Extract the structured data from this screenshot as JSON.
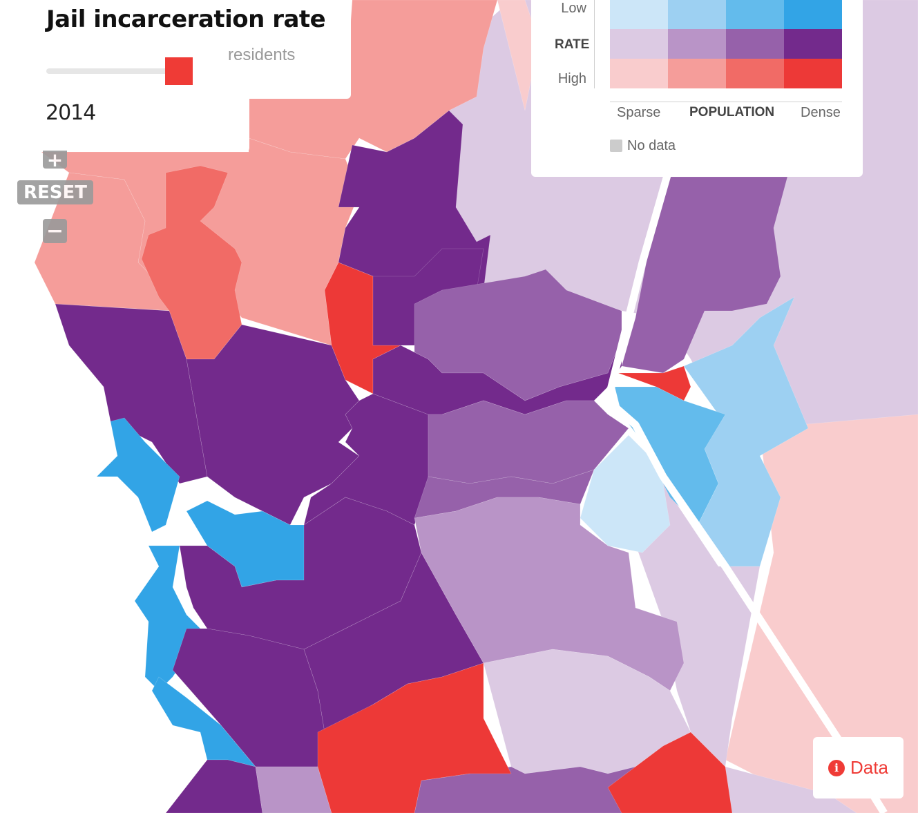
{
  "title": "Jail incarceration rate",
  "subtitle": "residents",
  "year_label": "2014",
  "zoom": {
    "in_label": "+",
    "reset_label": "RESET",
    "out_label": "−"
  },
  "legend": {
    "rate_label": "RATE",
    "low_label": "Low",
    "high_label": "High",
    "population_label": "POPULATION",
    "sparse_label": "Sparse",
    "dense_label": "Dense",
    "no_data_label": "No data",
    "no_data_color": "#cccccc",
    "matrix": [
      [
        "#cce6f8",
        "#9dd0f2",
        "#63bbec",
        "#32a4e6"
      ],
      [
        "#dccae3",
        "#b994c7",
        "#9661aa",
        "#732a8c"
      ],
      [
        "#f9cccd",
        "#f59d9a",
        "#f16b66",
        "#ed3937"
      ]
    ]
  },
  "data_button": {
    "label": "Data",
    "icon": "info-icon"
  },
  "colors": {
    "accent": "#ef3b36",
    "state_line": "#ffffff"
  }
}
